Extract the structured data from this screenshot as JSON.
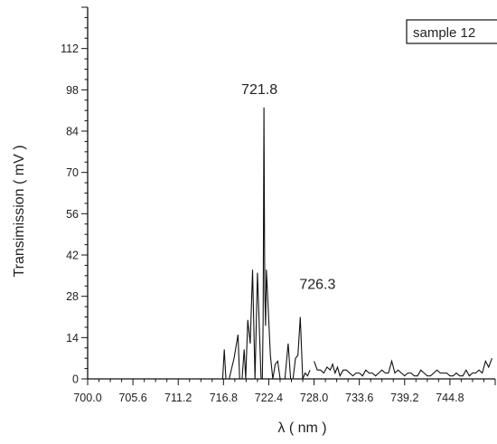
{
  "chart_data": {
    "type": "line",
    "title": "",
    "xlabel": "λ ( nm )",
    "ylabel": "Transimission ( mV )",
    "xlim": [
      700.0,
      750.4
    ],
    "ylim": [
      0,
      126
    ],
    "x_ticks": [
      700.0,
      705.6,
      711.2,
      716.8,
      722.4,
      728.0,
      733.6,
      739.2,
      744.8
    ],
    "x_tick_labels": [
      "700.0",
      "705.6",
      "711.2",
      "716.8",
      "722.4",
      "728.0",
      "733.6",
      "739.2",
      "744.8"
    ],
    "y_ticks": [
      0,
      14,
      28,
      42,
      56,
      70,
      84,
      98,
      112
    ],
    "y_tick_labels": [
      "0",
      "14",
      "28",
      "42",
      "56",
      "70",
      "84",
      "98",
      "112"
    ],
    "grid": false,
    "legend": {
      "position": "top-right",
      "entries": [
        "sample 12"
      ]
    },
    "annotations": [
      {
        "text": "721.8",
        "x": 721.8,
        "y": 96.5
      },
      {
        "text": "726.3",
        "x": 726.3,
        "y": 30.5
      }
    ],
    "series": [
      {
        "segments": [
          {
            "x": [
              700.0,
              716.7,
              716.9,
              717.1,
              717.5,
              718.1,
              718.6,
              718.8,
              719.1,
              719.35,
              719.55,
              719.8,
              720.1,
              720.4,
              720.7,
              721.0,
              721.2,
              721.45,
              721.6,
              721.7,
              721.8,
              721.9,
              722.0,
              722.1,
              722.3,
              722.6,
              722.9,
              723.2,
              723.5,
              723.8,
              724.1,
              724.4,
              724.8,
              725.1,
              725.4,
              725.7,
              726.0,
              726.3,
              726.6,
              726.9,
              727.2,
              727.5
            ],
            "y": [
              0,
              0,
              10,
              0,
              0,
              7,
              15,
              0,
              0,
              10,
              0,
              20,
              12,
              37,
              0,
              36,
              20,
              0,
              0,
              20,
              92,
              30,
              18,
              37,
              26,
              8,
              0,
              5,
              6,
              0,
              0,
              0,
              12,
              0,
              0,
              7,
              8,
              21,
              0,
              2,
              1,
              3
            ]
          },
          {
            "x": [
              728.0,
              728.4,
              728.8,
              729.2,
              729.6,
              730.0,
              730.3,
              730.6,
              730.9,
              731.2,
              731.6,
              732.0,
              732.4,
              732.8,
              733.2,
              733.6,
              734.0,
              734.4,
              734.8,
              735.2,
              735.6,
              736.0,
              736.4,
              736.8,
              737.2,
              737.6,
              738.0,
              738.4,
              738.8,
              739.2,
              739.6,
              740.0,
              740.4,
              740.8,
              741.2,
              741.6,
              742.0,
              742.4,
              742.8,
              743.2,
              743.6,
              744.0,
              744.4,
              744.8,
              745.2,
              745.6,
              746.0,
              746.4,
              746.8,
              747.2,
              747.6,
              748.0,
              748.4,
              748.8,
              749.2,
              749.6,
              750.0
            ],
            "y": [
              6,
              3,
              3,
              2,
              4,
              3,
              5,
              2,
              4,
              1,
              3,
              3,
              2,
              1,
              2,
              2,
              1,
              3,
              2,
              2,
              1,
              2,
              3,
              2,
              2,
              6,
              2,
              3,
              2,
              1,
              2,
              2,
              1,
              1,
              3,
              2,
              1,
              1,
              2,
              3,
              2,
              2,
              2,
              1,
              1,
              2,
              1,
              1,
              3,
              1,
              2,
              2,
              3,
              2,
              6,
              4,
              7
            ]
          }
        ]
      }
    ]
  }
}
